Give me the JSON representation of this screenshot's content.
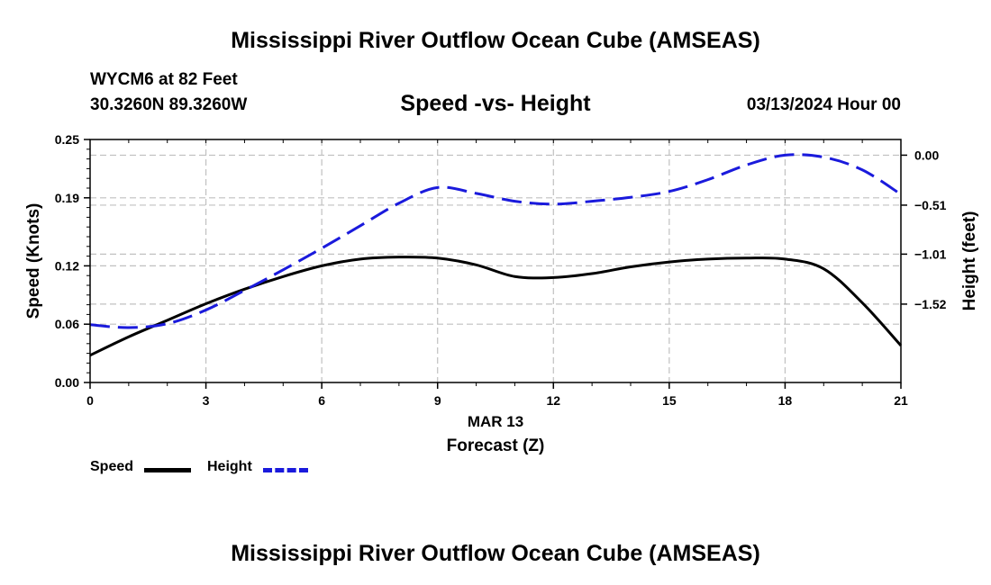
{
  "header": {
    "title": "Mississippi River Outflow Ocean Cube (AMSEAS)",
    "station": "WYCM6 at 82 Feet",
    "coords": "30.3260N  89.3260W",
    "chart_title": "Speed -vs- Height",
    "datetime": "03/13/2024 Hour 00"
  },
  "footer": {
    "title": "Mississippi River Outflow Ocean Cube (AMSEAS)"
  },
  "colors": {
    "speed": "#000000",
    "height": "#1a1adc",
    "grid": "#c0c0c0"
  },
  "chart_data": {
    "type": "line",
    "title": "Speed -vs- Height",
    "xlabel": "Forecast (Z)",
    "xlabel_date": "MAR 13",
    "ylabel_left": "Speed (Knots)",
    "ylabel_right": "Height (feet)",
    "xlim": [
      0,
      21
    ],
    "x_ticks": [
      "0",
      "3",
      "6",
      "9",
      "12",
      "15",
      "18",
      "21"
    ],
    "ylim_left": [
      0,
      0.25
    ],
    "y_ticks_left": [
      "0.00",
      "0.06",
      "0.12",
      "0.19",
      "0.25"
    ],
    "ylim_right": [
      -2.32,
      0.16
    ],
    "y_ticks_right": [
      "0.00",
      "-0.51",
      "-1.01",
      "-1.52"
    ],
    "grid": true,
    "legend_position": "bottom-left",
    "series": [
      {
        "name": "Speed",
        "axis": "left",
        "style": "solid",
        "x": [
          0,
          1,
          2,
          3,
          4,
          5,
          6,
          7,
          8,
          9,
          10,
          11,
          12,
          13,
          14,
          15,
          16,
          17,
          18,
          19,
          20,
          21
        ],
        "values": [
          0.028,
          0.047,
          0.064,
          0.081,
          0.096,
          0.109,
          0.12,
          0.127,
          0.129,
          0.128,
          0.121,
          0.109,
          0.108,
          0.112,
          0.119,
          0.124,
          0.127,
          0.128,
          0.127,
          0.117,
          0.082,
          0.038
        ]
      },
      {
        "name": "Height",
        "axis": "right",
        "style": "dashed",
        "x": [
          0,
          1,
          2,
          3,
          4,
          5,
          6,
          7,
          8,
          9,
          10,
          11,
          12,
          13,
          14,
          15,
          16,
          17,
          18,
          19,
          20,
          21
        ],
        "values": [
          -1.73,
          -1.76,
          -1.72,
          -1.58,
          -1.38,
          -1.17,
          -0.95,
          -0.72,
          -0.49,
          -0.33,
          -0.39,
          -0.47,
          -0.5,
          -0.47,
          -0.43,
          -0.37,
          -0.25,
          -0.1,
          0.0,
          -0.02,
          -0.15,
          -0.4
        ]
      }
    ]
  }
}
